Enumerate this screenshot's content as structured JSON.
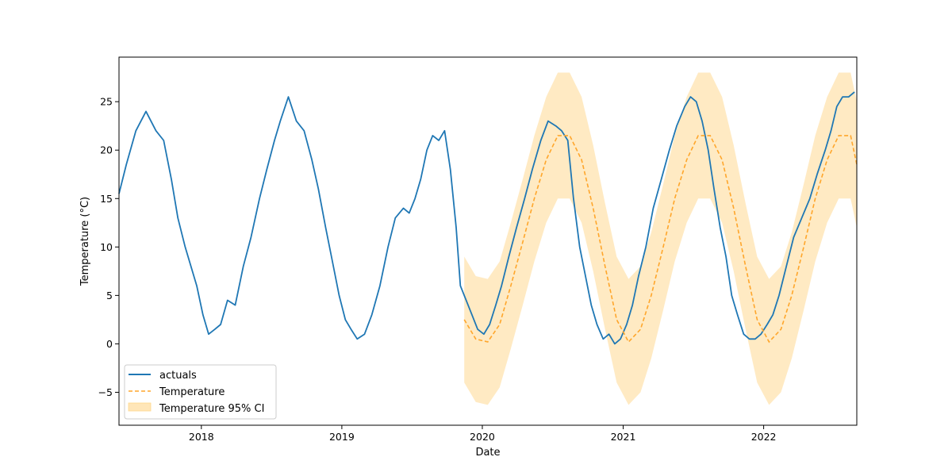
{
  "chart_data": {
    "type": "line",
    "title": "",
    "xlabel": "Date",
    "ylabel": "Temperature (°C)",
    "xlim": [
      "2017-06-01",
      "2022-08-31"
    ],
    "ylim": [
      -8.4,
      29.6
    ],
    "x_ticks": [
      "2018",
      "2019",
      "2020",
      "2021",
      "2022"
    ],
    "y_ticks": [
      -5,
      0,
      5,
      10,
      15,
      20,
      25
    ],
    "grid": false,
    "legend": {
      "position": "lower-left",
      "entries": [
        "actuals",
        "Temperature",
        "Temperature 95% CI"
      ]
    },
    "colors": {
      "actuals": "#1f77b4",
      "forecast": "#ffa62b",
      "ci_fill": "#ffe6b8"
    },
    "series": [
      {
        "name": "actuals",
        "style": "solid",
        "x": [
          "2017-06-01",
          "2017-06-20",
          "2017-07-15",
          "2017-08-10",
          "2017-09-05",
          "2017-09-25",
          "2017-10-15",
          "2017-11-01",
          "2017-11-20",
          "2017-12-05",
          "2017-12-20",
          "2018-01-05",
          "2018-01-20",
          "2018-02-05",
          "2018-02-20",
          "2018-03-10",
          "2018-03-30",
          "2018-04-20",
          "2018-05-10",
          "2018-06-01",
          "2018-06-20",
          "2018-07-10",
          "2018-07-25",
          "2018-08-15",
          "2018-09-05",
          "2018-09-25",
          "2018-10-15",
          "2018-11-01",
          "2018-11-20",
          "2018-12-05",
          "2018-12-25",
          "2019-01-10",
          "2019-01-25",
          "2019-02-10",
          "2019-03-01",
          "2019-03-20",
          "2019-04-10",
          "2019-05-01",
          "2019-05-20",
          "2019-06-10",
          "2019-06-25",
          "2019-07-10",
          "2019-07-25",
          "2019-08-10",
          "2019-08-25",
          "2019-09-10",
          "2019-09-25",
          "2019-10-10",
          "2019-10-25",
          "2019-11-05",
          "2019-11-20",
          "2019-12-05",
          "2019-12-20",
          "2020-01-05",
          "2020-01-20",
          "2020-02-05",
          "2020-02-20",
          "2020-03-10",
          "2020-03-30",
          "2020-04-20",
          "2020-05-10",
          "2020-06-01",
          "2020-06-20",
          "2020-07-10",
          "2020-07-25",
          "2020-08-10",
          "2020-08-25",
          "2020-09-10",
          "2020-09-25",
          "2020-10-10",
          "2020-10-25",
          "2020-11-10",
          "2020-11-25",
          "2020-12-10",
          "2020-12-25",
          "2021-01-10",
          "2021-01-25",
          "2021-02-10",
          "2021-03-01",
          "2021-03-20",
          "2021-04-10",
          "2021-05-01",
          "2021-05-20",
          "2021-06-10",
          "2021-06-25",
          "2021-07-10",
          "2021-07-25",
          "2021-08-10",
          "2021-08-25",
          "2021-09-10",
          "2021-09-25",
          "2021-10-10",
          "2021-10-25",
          "2021-11-10",
          "2021-11-25",
          "2021-12-10",
          "2021-12-25",
          "2022-01-10",
          "2022-01-25",
          "2022-02-10",
          "2022-03-01",
          "2022-03-20",
          "2022-04-10",
          "2022-05-01",
          "2022-05-20",
          "2022-06-10",
          "2022-06-25",
          "2022-07-10",
          "2022-07-25",
          "2022-08-10",
          "2022-08-25"
        ],
        "y": [
          15.5,
          18.5,
          22.0,
          24.0,
          22.0,
          21.0,
          17.0,
          13.0,
          10.0,
          8.0,
          6.0,
          3.0,
          1.0,
          1.5,
          2.0,
          4.5,
          4.0,
          8.0,
          11.0,
          15.0,
          18.0,
          21.0,
          23.0,
          25.5,
          23.0,
          22.0,
          19.0,
          16.0,
          12.0,
          9.0,
          5.0,
          2.5,
          1.5,
          0.5,
          1.0,
          3.0,
          6.0,
          10.0,
          13.0,
          14.0,
          13.5,
          15.0,
          17.0,
          20.0,
          21.5,
          21.0,
          22.0,
          18.0,
          12.0,
          6.0,
          4.5,
          3.0,
          1.5,
          1.0,
          2.0,
          4.0,
          6.0,
          9.0,
          12.0,
          15.0,
          18.0,
          21.0,
          23.0,
          22.5,
          22.0,
          21.0,
          15.0,
          10.0,
          7.0,
          4.0,
          2.0,
          0.5,
          1.0,
          0.0,
          0.5,
          2.0,
          4.0,
          7.0,
          10.0,
          14.0,
          17.0,
          20.0,
          22.5,
          24.5,
          25.5,
          25.0,
          23.0,
          20.0,
          16.0,
          12.0,
          9.0,
          5.0,
          3.0,
          1.0,
          0.5,
          0.5,
          1.0,
          2.0,
          3.0,
          5.0,
          8.0,
          11.0,
          13.0,
          15.0,
          17.5,
          20.0,
          22.0,
          24.5,
          25.5,
          25.5,
          26.0
        ]
      },
      {
        "name": "Temperature",
        "style": "dashed",
        "x": [
          "2019-11-15",
          "2019-12-15",
          "2020-01-15",
          "2020-02-15",
          "2020-03-15",
          "2020-04-15",
          "2020-05-15",
          "2020-06-15",
          "2020-07-15",
          "2020-08-15",
          "2020-09-15",
          "2020-10-15",
          "2020-11-15",
          "2020-12-15",
          "2021-01-15",
          "2021-02-15",
          "2021-03-15",
          "2021-04-15",
          "2021-05-15",
          "2021-06-15",
          "2021-07-15",
          "2021-08-15",
          "2021-09-15",
          "2021-10-15",
          "2021-11-15",
          "2021-12-15",
          "2022-01-15",
          "2022-02-15",
          "2022-03-15",
          "2022-04-15",
          "2022-05-15",
          "2022-06-15",
          "2022-07-15",
          "2022-08-15",
          "2022-08-31"
        ],
        "y": [
          2.5,
          0.5,
          0.2,
          2.0,
          6.0,
          10.5,
          15.0,
          19.0,
          21.5,
          21.5,
          19.0,
          14.0,
          8.0,
          2.5,
          0.2,
          1.5,
          5.0,
          10.0,
          15.0,
          19.0,
          21.5,
          21.5,
          19.0,
          14.0,
          8.0,
          2.5,
          0.2,
          1.5,
          5.0,
          10.0,
          15.0,
          19.0,
          21.5,
          21.5,
          18.5
        ]
      }
    ],
    "confidence_interval": {
      "name": "Temperature 95% CI",
      "lower_offset": -6.5,
      "upper_offset": 6.5
    }
  }
}
